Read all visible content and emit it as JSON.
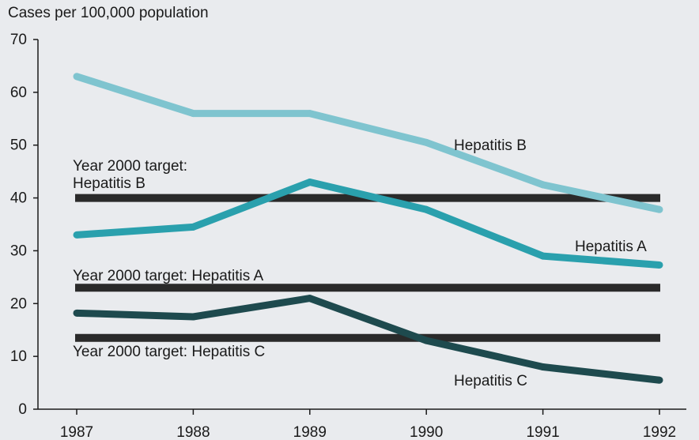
{
  "chart_data": {
    "type": "line",
    "ylabel": "Cases per 100,000 population",
    "xlabel": "",
    "title": "",
    "x": [
      "1987",
      "1988",
      "1989",
      "1990",
      "1991",
      "1992"
    ],
    "ylim": [
      0,
      70
    ],
    "yticks": [
      "0",
      "10",
      "20",
      "30",
      "40",
      "50",
      "60",
      "70"
    ],
    "grid": false,
    "series": [
      {
        "name": "Hepatitis B",
        "values": [
          63,
          56,
          56,
          50.5,
          42.5,
          37.8
        ],
        "color": "#7fc4cf"
      },
      {
        "name": "Hepatitis A",
        "values": [
          33,
          34.5,
          43,
          37.8,
          29,
          27.3
        ],
        "color": "#2aa0ad"
      },
      {
        "name": "Hepatitis C",
        "values": [
          18.2,
          17.5,
          21,
          13,
          8,
          5.5
        ],
        "color": "#1e4a4e"
      }
    ],
    "targets": [
      {
        "label": "Year 2000 target: Hepatitis B",
        "label_line1": "Year 2000 target:",
        "label_line2": "Hepatitis B",
        "value": 40
      },
      {
        "label": "Year 2000 target: Hepatitis A",
        "value": 23
      },
      {
        "label": "Year 2000 target: Hepatitis C",
        "value": 13.5
      }
    ],
    "target_color": "#2a2a2a"
  }
}
